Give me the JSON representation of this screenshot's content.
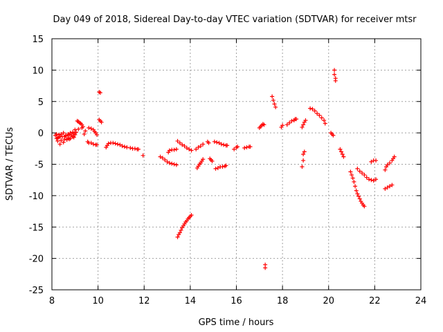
{
  "chart_data": {
    "type": "scatter",
    "title": "Day 049 of 2018, Sidereal Day-to-day VTEC variation (SDTVAR) for receiver mtsr",
    "xlabel": "GPS time / hours",
    "ylabel": "SDTVAR / TECUs",
    "xlim": [
      8,
      24
    ],
    "ylim": [
      -25,
      15
    ],
    "x_ticks": [
      8,
      10,
      12,
      14,
      16,
      18,
      20,
      22,
      24
    ],
    "y_ticks": [
      15,
      10,
      5,
      0,
      -5,
      -10,
      -15,
      -20,
      -25
    ],
    "grid": true,
    "marker": "+",
    "marker_color": "#ff0000",
    "series": [
      {
        "name": "SDTVAR",
        "points": [
          [
            8.15,
            -0.4
          ],
          [
            8.2,
            -0.9
          ],
          [
            8.25,
            -1.3
          ],
          [
            8.3,
            -0.7
          ],
          [
            8.35,
            -1.8
          ],
          [
            8.4,
            -1.2
          ],
          [
            8.45,
            -0.6
          ],
          [
            8.5,
            -1.5
          ],
          [
            8.55,
            -1.0
          ],
          [
            8.6,
            -0.5
          ],
          [
            8.65,
            -1.1
          ],
          [
            8.7,
            -0.8
          ],
          [
            8.75,
            -0.3
          ],
          [
            8.8,
            -0.9
          ],
          [
            8.85,
            -0.4
          ],
          [
            8.9,
            -0.6
          ],
          [
            8.95,
            -0.1
          ],
          [
            9.0,
            -0.3
          ],
          [
            9.05,
            0.1
          ],
          [
            9.1,
            1.9
          ],
          [
            9.15,
            1.8
          ],
          [
            9.2,
            1.6
          ],
          [
            9.25,
            1.5
          ],
          [
            9.3,
            1.3
          ],
          [
            9.35,
            1.0
          ],
          [
            9.4,
            -0.2
          ],
          [
            9.45,
            0.3
          ],
          [
            8.3,
            -0.3
          ],
          [
            8.4,
            -0.2
          ],
          [
            8.5,
            0.0
          ],
          [
            8.6,
            -0.4
          ],
          [
            8.7,
            -0.2
          ],
          [
            8.8,
            0.0
          ],
          [
            8.9,
            0.1
          ],
          [
            9.0,
            0.5
          ],
          [
            9.15,
            0.6
          ],
          [
            9.3,
            0.8
          ],
          [
            8.2,
            -0.2
          ],
          [
            8.25,
            -0.8
          ],
          [
            8.35,
            -0.6
          ],
          [
            8.55,
            -0.6
          ],
          [
            8.75,
            -1.0
          ],
          [
            8.95,
            -0.7
          ],
          [
            9.55,
            -1.4
          ],
          [
            9.6,
            -1.6
          ],
          [
            9.7,
            -1.6
          ],
          [
            9.8,
            -1.8
          ],
          [
            9.9,
            -1.9
          ],
          [
            9.95,
            -1.9
          ],
          [
            9.6,
            0.8
          ],
          [
            9.7,
            0.7
          ],
          [
            9.8,
            0.5
          ],
          [
            9.85,
            0.2
          ],
          [
            9.9,
            0.0
          ],
          [
            9.95,
            -0.3
          ],
          [
            10.05,
            6.5
          ],
          [
            10.1,
            6.4
          ],
          [
            10.05,
            2.1
          ],
          [
            10.1,
            1.9
          ],
          [
            10.15,
            1.7
          ],
          [
            10.35,
            -2.3
          ],
          [
            10.4,
            -2.0
          ],
          [
            10.45,
            -1.7
          ],
          [
            10.55,
            -1.6
          ],
          [
            10.65,
            -1.6
          ],
          [
            10.75,
            -1.7
          ],
          [
            10.85,
            -1.8
          ],
          [
            10.95,
            -1.9
          ],
          [
            11.05,
            -2.1
          ],
          [
            11.15,
            -2.2
          ],
          [
            11.25,
            -2.3
          ],
          [
            11.4,
            -2.4
          ],
          [
            11.5,
            -2.5
          ],
          [
            11.6,
            -2.5
          ],
          [
            11.7,
            -2.6
          ],
          [
            11.75,
            -2.6
          ],
          [
            11.95,
            -3.6
          ],
          [
            12.7,
            -3.8
          ],
          [
            12.8,
            -4.0
          ],
          [
            12.9,
            -4.3
          ],
          [
            13.0,
            -4.6
          ],
          [
            13.1,
            -4.8
          ],
          [
            13.2,
            -4.9
          ],
          [
            13.3,
            -5.0
          ],
          [
            13.4,
            -5.1
          ],
          [
            13.05,
            -3.1
          ],
          [
            13.1,
            -2.8
          ],
          [
            13.2,
            -2.7
          ],
          [
            13.3,
            -2.7
          ],
          [
            13.4,
            -2.6
          ],
          [
            13.45,
            -1.3
          ],
          [
            13.55,
            -1.6
          ],
          [
            13.65,
            -1.9
          ],
          [
            13.75,
            -2.1
          ],
          [
            13.85,
            -2.4
          ],
          [
            13.95,
            -2.6
          ],
          [
            14.05,
            -2.8
          ],
          [
            13.45,
            -16.6
          ],
          [
            13.5,
            -16.2
          ],
          [
            13.55,
            -15.9
          ],
          [
            13.6,
            -15.5
          ],
          [
            13.65,
            -15.1
          ],
          [
            13.7,
            -14.8
          ],
          [
            13.75,
            -14.5
          ],
          [
            13.8,
            -14.2
          ],
          [
            13.85,
            -14.0
          ],
          [
            13.9,
            -13.7
          ],
          [
            13.95,
            -13.5
          ],
          [
            14.0,
            -13.3
          ],
          [
            14.05,
            -13.1
          ],
          [
            14.25,
            -2.6
          ],
          [
            14.35,
            -2.3
          ],
          [
            14.45,
            -2.1
          ],
          [
            14.55,
            -1.8
          ],
          [
            14.3,
            -5.6
          ],
          [
            14.35,
            -5.3
          ],
          [
            14.4,
            -5.0
          ],
          [
            14.45,
            -4.8
          ],
          [
            14.5,
            -4.5
          ],
          [
            14.55,
            -4.2
          ],
          [
            14.75,
            -1.4
          ],
          [
            14.8,
            -1.6
          ],
          [
            14.85,
            -4.1
          ],
          [
            14.9,
            -4.3
          ],
          [
            14.95,
            -4.5
          ],
          [
            15.05,
            -1.4
          ],
          [
            15.15,
            -1.5
          ],
          [
            15.25,
            -1.6
          ],
          [
            15.35,
            -1.8
          ],
          [
            15.45,
            -1.9
          ],
          [
            15.55,
            -2.0
          ],
          [
            15.6,
            -2.0
          ],
          [
            15.1,
            -5.7
          ],
          [
            15.2,
            -5.6
          ],
          [
            15.3,
            -5.4
          ],
          [
            15.4,
            -5.4
          ],
          [
            15.5,
            -5.3
          ],
          [
            15.55,
            -5.2
          ],
          [
            15.9,
            -2.6
          ],
          [
            16.0,
            -2.3
          ],
          [
            16.05,
            -2.2
          ],
          [
            16.35,
            -2.4
          ],
          [
            16.45,
            -2.3
          ],
          [
            16.55,
            -2.2
          ],
          [
            16.6,
            -2.2
          ],
          [
            17.0,
            0.8
          ],
          [
            17.05,
            1.0
          ],
          [
            17.1,
            1.2
          ],
          [
            17.15,
            1.4
          ],
          [
            17.2,
            1.3
          ],
          [
            17.25,
            -21.0
          ],
          [
            17.25,
            -21.5
          ],
          [
            17.55,
            5.8
          ],
          [
            17.6,
            5.2
          ],
          [
            17.65,
            4.6
          ],
          [
            17.7,
            4.1
          ],
          [
            17.95,
            0.9
          ],
          [
            18.0,
            1.2
          ],
          [
            18.2,
            1.3
          ],
          [
            18.3,
            1.6
          ],
          [
            18.4,
            1.9
          ],
          [
            18.5,
            2.0
          ],
          [
            18.55,
            2.2
          ],
          [
            18.6,
            2.2
          ],
          [
            18.85,
            -5.4
          ],
          [
            18.9,
            -4.4
          ],
          [
            18.9,
            -3.4
          ],
          [
            18.95,
            -3.0
          ],
          [
            18.85,
            0.9
          ],
          [
            18.9,
            1.3
          ],
          [
            18.95,
            1.7
          ],
          [
            19.0,
            2.0
          ],
          [
            19.2,
            3.9
          ],
          [
            19.3,
            3.8
          ],
          [
            19.4,
            3.5
          ],
          [
            19.5,
            3.1
          ],
          [
            19.6,
            2.8
          ],
          [
            19.7,
            2.4
          ],
          [
            19.8,
            2.0
          ],
          [
            19.85,
            1.5
          ],
          [
            20.1,
            0.0
          ],
          [
            20.15,
            -0.2
          ],
          [
            20.2,
            -0.4
          ],
          [
            20.25,
            10.0
          ],
          [
            20.25,
            9.3
          ],
          [
            20.3,
            8.7
          ],
          [
            20.3,
            8.3
          ],
          [
            20.5,
            -2.6
          ],
          [
            20.55,
            -3.0
          ],
          [
            20.6,
            -3.4
          ],
          [
            20.65,
            -3.8
          ],
          [
            20.95,
            -6.2
          ],
          [
            21.0,
            -6.7
          ],
          [
            21.05,
            -7.2
          ],
          [
            21.1,
            -7.8
          ],
          [
            21.15,
            -8.5
          ],
          [
            21.2,
            -9.2
          ],
          [
            21.25,
            -9.7
          ],
          [
            21.3,
            -10.1
          ],
          [
            21.35,
            -10.5
          ],
          [
            21.4,
            -10.9
          ],
          [
            21.45,
            -11.2
          ],
          [
            21.5,
            -11.5
          ],
          [
            21.55,
            -11.7
          ],
          [
            21.25,
            -5.7
          ],
          [
            21.35,
            -6.1
          ],
          [
            21.45,
            -6.4
          ],
          [
            21.55,
            -6.7
          ],
          [
            21.65,
            -7.1
          ],
          [
            21.75,
            -7.4
          ],
          [
            21.85,
            -7.5
          ],
          [
            21.95,
            -7.6
          ],
          [
            22.05,
            -7.4
          ],
          [
            21.85,
            -4.6
          ],
          [
            21.95,
            -4.4
          ],
          [
            22.05,
            -4.4
          ],
          [
            22.45,
            -8.9
          ],
          [
            22.55,
            -8.7
          ],
          [
            22.65,
            -8.5
          ],
          [
            22.75,
            -8.3
          ],
          [
            22.45,
            -5.9
          ],
          [
            22.5,
            -5.4
          ],
          [
            22.55,
            -5.1
          ],
          [
            22.65,
            -4.8
          ],
          [
            22.75,
            -4.4
          ],
          [
            22.8,
            -4.1
          ],
          [
            22.85,
            -3.8
          ]
        ]
      }
    ]
  }
}
